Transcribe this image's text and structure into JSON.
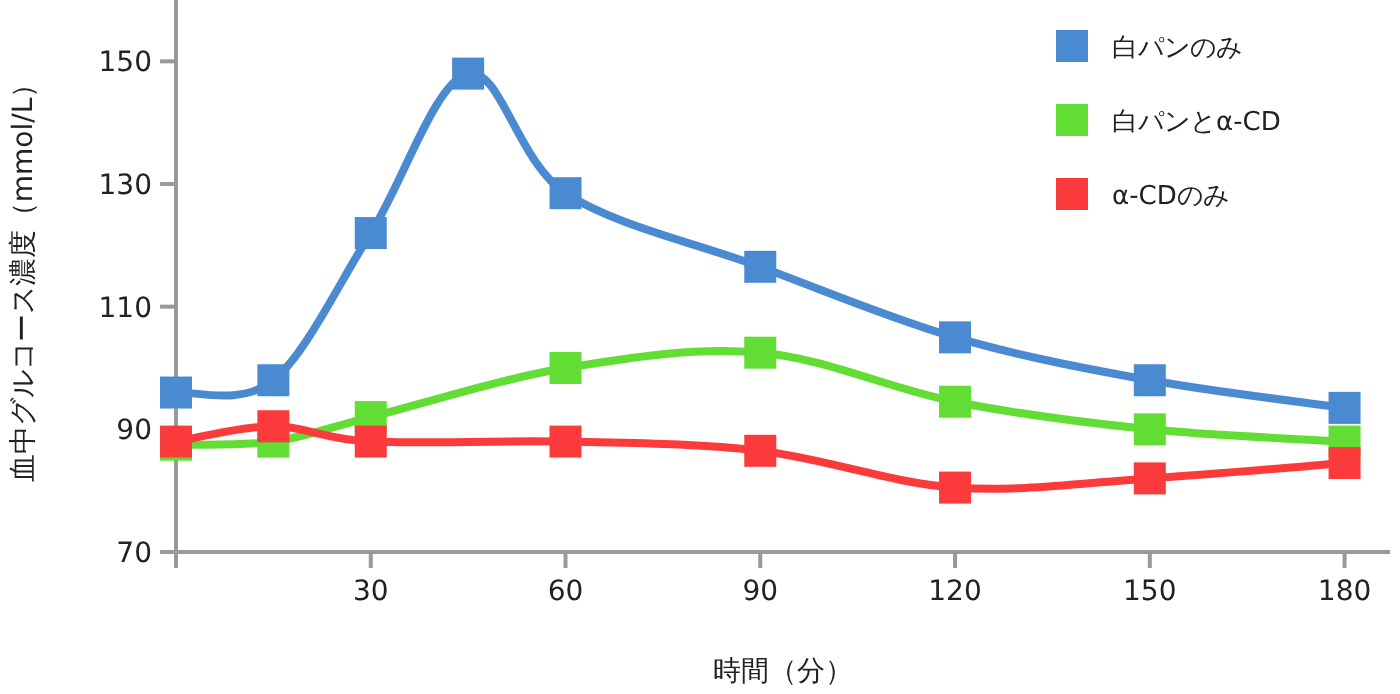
{
  "chart_data": {
    "type": "line",
    "xlabel": "時間（分）",
    "ylabel": "血中グルコース濃度（mmol/L）",
    "xlim": [
      0,
      187
    ],
    "ylim": [
      70,
      160
    ],
    "xticks": [
      {
        "value": 0,
        "label": null
      },
      30,
      60,
      90,
      120,
      150,
      180
    ],
    "yticks": [
      70,
      90,
      110,
      130,
      150
    ],
    "grid": false,
    "legend": "top right",
    "marker": "square",
    "line_style": "solid",
    "series": [
      {
        "name": "白パンのみ",
        "color": "#4a8ad0",
        "x": [
          0,
          15,
          30,
          45,
          60,
          90,
          120,
          150,
          180
        ],
        "values": [
          96,
          98,
          122,
          148,
          128.5,
          116.5,
          105,
          98,
          93.5
        ]
      },
      {
        "name": "白パンとα-CD",
        "color": "#62dd34",
        "x": [
          0,
          15,
          30,
          60,
          90,
          120,
          150,
          180
        ],
        "values": [
          87.5,
          88,
          92,
          100,
          102.5,
          94.5,
          90,
          88
        ]
      },
      {
        "name": "α-CDのみ",
        "color": "#fb3b3b",
        "x": [
          0,
          15,
          30,
          60,
          90,
          120,
          150,
          180
        ],
        "values": [
          88,
          90.5,
          88,
          88,
          86.5,
          80.5,
          82,
          84.5
        ]
      }
    ]
  }
}
